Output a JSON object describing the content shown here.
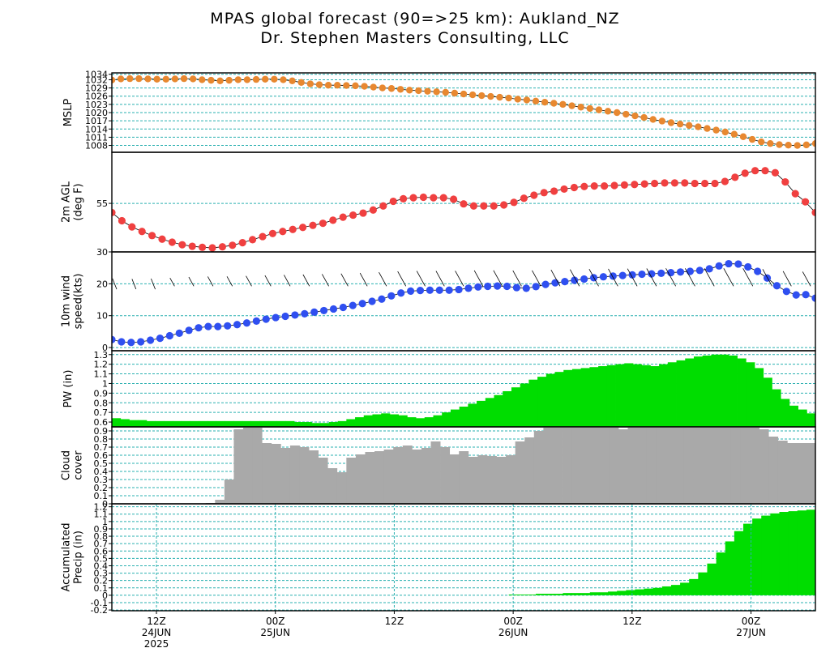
{
  "title": "MPAS global forecast (90=>25 km): Aukland_NZ",
  "subtitle": "Dr. Stephen Masters Consulting, LLC",
  "colors": {
    "mslp": "#e88830",
    "temp": "#f04040",
    "wind": "#2f4ff0",
    "pw": "#00dd00",
    "cloud": "#a9a9a9",
    "precip": "#00dd00",
    "grid": "#2ab0b0"
  },
  "x_axis": {
    "time_labels": [
      "12Z",
      "00Z",
      "12Z",
      "00Z",
      "12Z",
      "00Z"
    ],
    "time_hours": [
      12,
      24,
      36,
      48,
      60,
      72
    ],
    "date_labels": [
      "24JUN",
      "25JUN",
      "26JUN",
      "27JUN"
    ],
    "date_hours": [
      12,
      24,
      48,
      72
    ],
    "year_label": "2025",
    "year_hour": 12,
    "start_hour": 7.5,
    "end_hour": 78.5,
    "step_hours": 1.5
  },
  "chart_data": [
    {
      "id": "mslp",
      "type": "line",
      "ylabel": "MSLP",
      "yticks": [
        "1008",
        "1011",
        "1014",
        "1017",
        "1020",
        "1023",
        "1026",
        "1029",
        "1032",
        "1034"
      ],
      "ylim": [
        1005.5,
        1034.5
      ],
      "values": [
        1031.9,
        1032.3,
        1032.4,
        1032.4,
        1032.3,
        1032.2,
        1032.2,
        1032.3,
        1032.4,
        1032.3,
        1032.0,
        1031.8,
        1031.6,
        1031.8,
        1032.0,
        1032.0,
        1032.1,
        1032.2,
        1032.2,
        1032.0,
        1031.6,
        1031.0,
        1030.5,
        1030.2,
        1030.0,
        1030.0,
        1029.9,
        1029.8,
        1029.6,
        1029.3,
        1029.0,
        1028.8,
        1028.5,
        1028.2,
        1028.0,
        1027.8,
        1027.6,
        1027.4,
        1027.1,
        1026.8,
        1026.5,
        1026.2,
        1025.9,
        1025.6,
        1025.3,
        1024.9,
        1024.6,
        1024.2,
        1023.8,
        1023.4,
        1023.0,
        1022.5,
        1022.0,
        1021.5,
        1021.0,
        1020.5,
        1020.0,
        1019.4,
        1018.8,
        1018.2,
        1017.5,
        1016.9,
        1016.3,
        1015.8,
        1015.3,
        1014.8,
        1014.2,
        1013.6,
        1012.9,
        1012.1,
        1011.2,
        1010.2,
        1009.3,
        1008.7,
        1008.3,
        1008.1,
        1008.0,
        1008.2,
        1008.7
      ]
    },
    {
      "id": "temp",
      "type": "line",
      "ylabel": "2m AGL (deg F)",
      "yticks": [
        "55"
      ],
      "ylim": [
        45.5,
        65
      ],
      "values": [
        53.2,
        51.6,
        50.4,
        49.5,
        48.7,
        48.0,
        47.4,
        46.9,
        46.6,
        46.4,
        46.3,
        46.5,
        46.8,
        47.3,
        47.9,
        48.5,
        49.1,
        49.5,
        49.9,
        50.3,
        50.7,
        51.1,
        51.7,
        52.3,
        52.7,
        53.1,
        53.7,
        54.5,
        55.4,
        55.9,
        56.1,
        56.2,
        56.1,
        56.1,
        55.8,
        54.9,
        54.5,
        54.5,
        54.5,
        54.7,
        55.2,
        56.0,
        56.6,
        57.1,
        57.4,
        57.8,
        58.1,
        58.3,
        58.4,
        58.4,
        58.5,
        58.6,
        58.7,
        58.8,
        58.9,
        59.0,
        59.0,
        59.0,
        58.9,
        58.9,
        58.9,
        59.3,
        60.1,
        60.9,
        61.4,
        61.4,
        61.0,
        59.2,
        56.9,
        55.3,
        53.2
      ]
    },
    {
      "id": "wind",
      "type": "line",
      "ylabel": "10m wind speed(kts)",
      "yticks": [
        "0",
        "10",
        "20",
        "30"
      ],
      "ylim": [
        -1,
        30
      ],
      "values": [
        2.5,
        1.8,
        1.6,
        1.8,
        2.3,
        2.9,
        3.7,
        4.5,
        5.4,
        6.2,
        6.6,
        6.6,
        6.8,
        7.2,
        7.7,
        8.3,
        8.9,
        9.4,
        9.8,
        10.2,
        10.6,
        11.1,
        11.6,
        12.1,
        12.6,
        13.2,
        13.8,
        14.5,
        15.2,
        16.2,
        17.1,
        17.7,
        17.9,
        18.0,
        18.0,
        18.0,
        18.2,
        18.6,
        19.0,
        19.2,
        19.3,
        19.2,
        18.8,
        18.6,
        19.1,
        19.8,
        20.3,
        20.7,
        21.1,
        21.5,
        21.9,
        22.2,
        22.4,
        22.6,
        22.8,
        23.0,
        23.1,
        23.3,
        23.5,
        23.7,
        23.9,
        24.2,
        24.7,
        25.6,
        26.3,
        26.2,
        25.3,
        23.9,
        21.8,
        19.4,
        17.6,
        16.5,
        16.6,
        15.5
      ]
    },
    {
      "id": "pw",
      "type": "bar",
      "ylabel": "PW (in)",
      "yticks": [
        "0.6",
        "0.7",
        "0.8",
        "0.9",
        "1",
        "1.1",
        "1.2",
        "1.3"
      ],
      "ylim": [
        0.55,
        1.34
      ],
      "values": [
        0.64,
        0.63,
        0.62,
        0.62,
        0.61,
        0.61,
        0.61,
        0.61,
        0.61,
        0.61,
        0.61,
        0.61,
        0.61,
        0.61,
        0.61,
        0.61,
        0.61,
        0.61,
        0.61,
        0.61,
        0.61,
        0.6,
        0.6,
        0.59,
        0.59,
        0.6,
        0.61,
        0.63,
        0.65,
        0.67,
        0.68,
        0.69,
        0.68,
        0.67,
        0.65,
        0.64,
        0.65,
        0.67,
        0.7,
        0.73,
        0.76,
        0.79,
        0.82,
        0.85,
        0.88,
        0.92,
        0.96,
        1.0,
        1.04,
        1.07,
        1.1,
        1.12,
        1.14,
        1.15,
        1.16,
        1.17,
        1.18,
        1.19,
        1.2,
        1.21,
        1.2,
        1.19,
        1.18,
        1.2,
        1.22,
        1.24,
        1.26,
        1.28,
        1.29,
        1.3,
        1.3,
        1.29,
        1.26,
        1.22,
        1.16,
        1.06,
        0.94,
        0.84,
        0.77,
        0.73,
        0.69
      ]
    },
    {
      "id": "cloud",
      "type": "bar",
      "ylabel": "Cloud cover",
      "yticks": [
        "0",
        "0.1",
        "0.2",
        "0.3",
        "0.4",
        "0.5",
        "0.6",
        "0.7",
        "0.8",
        "0.9"
      ],
      "ylim": [
        0,
        0.95
      ],
      "values": [
        0,
        0,
        0,
        0,
        0,
        0,
        0,
        0,
        0,
        0,
        0.01,
        0.05,
        0.3,
        0.92,
        1.0,
        1.0,
        0.75,
        0.74,
        0.69,
        0.72,
        0.7,
        0.66,
        0.57,
        0.44,
        0.39,
        0.57,
        0.61,
        0.64,
        0.65,
        0.67,
        0.7,
        0.72,
        0.67,
        0.69,
        0.77,
        0.7,
        0.61,
        0.65,
        0.58,
        0.6,
        0.59,
        0.58,
        0.6,
        0.77,
        0.82,
        0.9,
        0.97,
        1.0,
        1.0,
        1.0,
        1.0,
        1.0,
        0.98,
        0.97,
        0.92,
        0.96,
        0.96,
        0.97,
        0.98,
        0.99,
        1.0,
        1.0,
        1.0,
        1.0,
        1.0,
        1.0,
        1.0,
        1.0,
        1.0,
        0.92,
        0.83,
        0.78,
        0.75,
        0.75,
        0.75
      ]
    },
    {
      "id": "precip",
      "type": "bar",
      "ylabel": "Accumulated Precip (in)",
      "yticks": [
        "-0.2",
        "-0.1",
        "0",
        "0.1",
        "0.2",
        "0.3",
        "0.4",
        "0.5",
        "0.6",
        "0.7",
        "0.8",
        "0.9",
        "1",
        "1.1",
        "1.2"
      ],
      "ylim": [
        -0.21,
        1.24
      ],
      "values": [
        0,
        0,
        0,
        0,
        0,
        0,
        0,
        0,
        0,
        0,
        0,
        0,
        0,
        0,
        0,
        0,
        0,
        0,
        0,
        0,
        0,
        0,
        0,
        0,
        0,
        0,
        0,
        0,
        0,
        0,
        0,
        0,
        0,
        0,
        0,
        0,
        0,
        0,
        0,
        0,
        0,
        0,
        0,
        0,
        0.01,
        0.01,
        0.01,
        0.02,
        0.02,
        0.02,
        0.03,
        0.03,
        0.03,
        0.04,
        0.04,
        0.05,
        0.06,
        0.07,
        0.08,
        0.09,
        0.1,
        0.12,
        0.14,
        0.17,
        0.22,
        0.31,
        0.43,
        0.58,
        0.73,
        0.87,
        0.97,
        1.04,
        1.08,
        1.11,
        1.13,
        1.14,
        1.15,
        1.16
      ]
    }
  ]
}
